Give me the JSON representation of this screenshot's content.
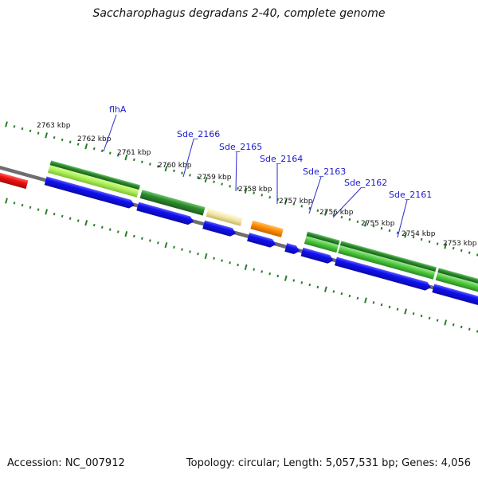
{
  "title": "Saccharophagus degradans 2-40, complete genome",
  "footer": {
    "accession": "Accession: NC_007912",
    "summary": "Topology: circular; Length: 5,057,531 bp; Genes: 4,056"
  },
  "colors": {
    "backbone": "#808080",
    "ticks": "#2a7d2a",
    "gene_label": "#1a1acc",
    "leader_line": "#2a2acc",
    "cds_blue": "#1212e8",
    "rna_red": "#ee1111",
    "green_dark": "#2e8b2e",
    "green_light": "#aef05a",
    "green_mid": "#4cc83c",
    "tan": "#f2e6a6",
    "orange": "#ff8c00"
  },
  "kbp_labels": [
    "2763 kbp",
    "2762 kbp",
    "2761 kbp",
    "2760 kbp",
    "2759 kbp",
    "2758 kbp",
    "2757 kbp",
    "2756 kbp",
    "2755 kbp",
    "2754 kbp",
    "2753 kbp"
  ],
  "gene_labels": [
    "flhA",
    "Sde_2166",
    "Sde_2165",
    "Sde_2164",
    "Sde_2163",
    "Sde_2162",
    "Sde_2161"
  ]
}
